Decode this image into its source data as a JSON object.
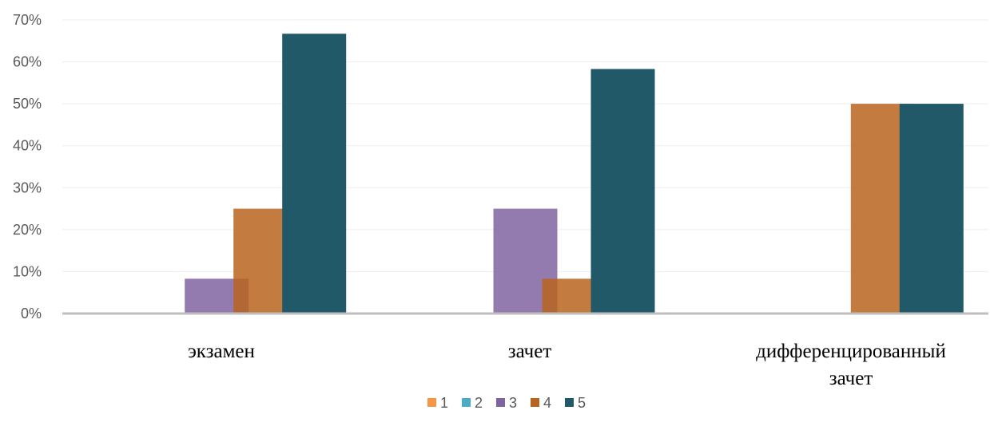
{
  "chart_data": {
    "type": "bar",
    "categories": [
      [
        "экзамен"
      ],
      [
        "зачет"
      ],
      [
        "дифференцированный",
        "зачет"
      ]
    ],
    "series": [
      {
        "name": "1",
        "color": "#F79646",
        "values": [
          0,
          0,
          0
        ]
      },
      {
        "name": "2",
        "color": "#4BACC6",
        "values": [
          0,
          0,
          0
        ]
      },
      {
        "name": "3",
        "color": "#8064A2",
        "values": [
          8.3,
          25,
          0
        ]
      },
      {
        "name": "4",
        "color": "#B8641E",
        "values": [
          25,
          8.3,
          50
        ]
      },
      {
        "name": "5",
        "color": "#215968",
        "values": [
          66.7,
          58.3,
          50
        ]
      }
    ],
    "ylim": [
      0,
      70
    ],
    "yticks": [
      "0%",
      "10%",
      "20%",
      "30%",
      "40%",
      "50%",
      "60%",
      "70%"
    ],
    "grid": true,
    "legend": "bottom"
  }
}
